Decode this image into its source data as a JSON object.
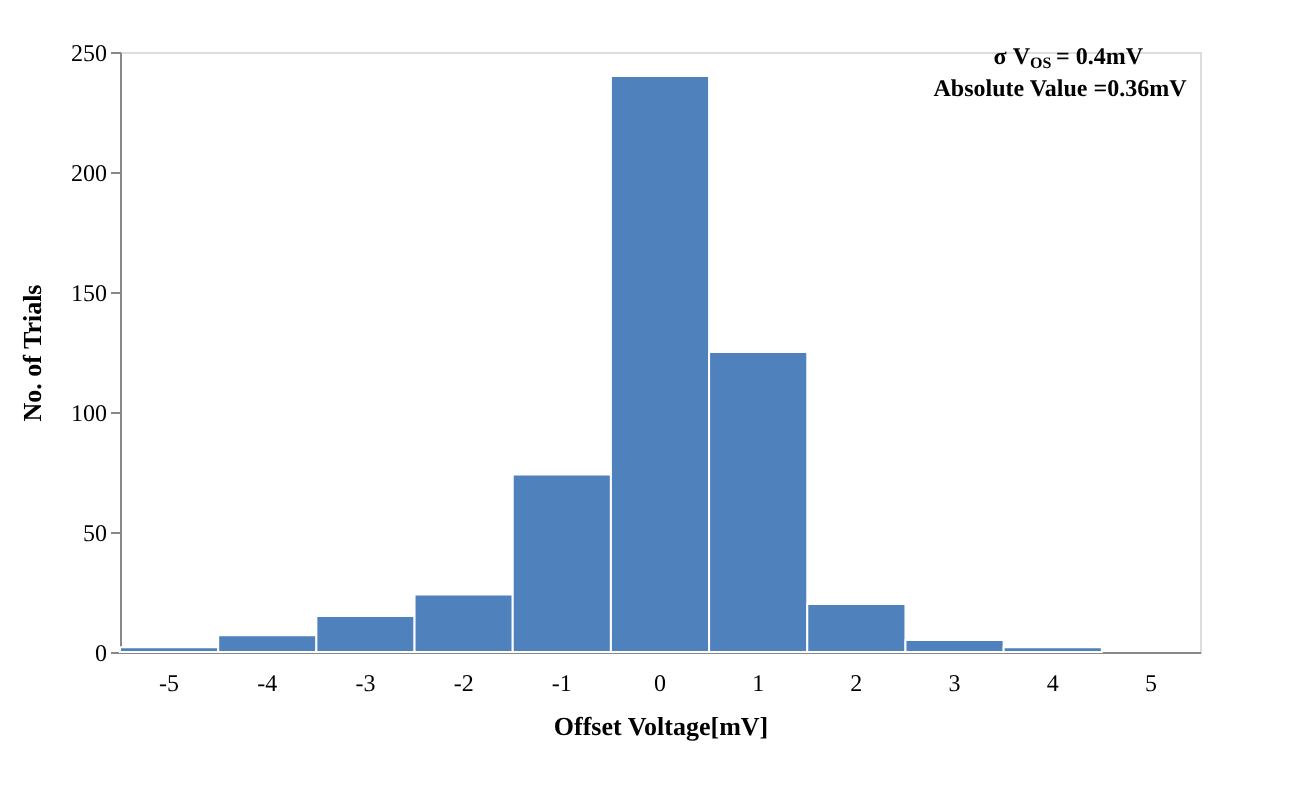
{
  "chart_data": {
    "type": "bar",
    "xlabel": "Offset Voltage[mV]",
    "ylabel": "No. of Trials",
    "categories": [
      "-5",
      "-4",
      "-3",
      "-2",
      "-1",
      "0",
      "1",
      "2",
      "3",
      "4",
      "5"
    ],
    "values": [
      2,
      7,
      15,
      24,
      74,
      240,
      125,
      20,
      5,
      2,
      null
    ],
    "color": "#4f81bd",
    "ylim": [
      0,
      250
    ],
    "yticks": [
      0,
      50,
      100,
      150,
      200,
      250
    ],
    "grid": false,
    "annotations": [
      "σ V$_{OS}$= 0.4mV",
      "Absolute Value =0.36mV"
    ]
  }
}
